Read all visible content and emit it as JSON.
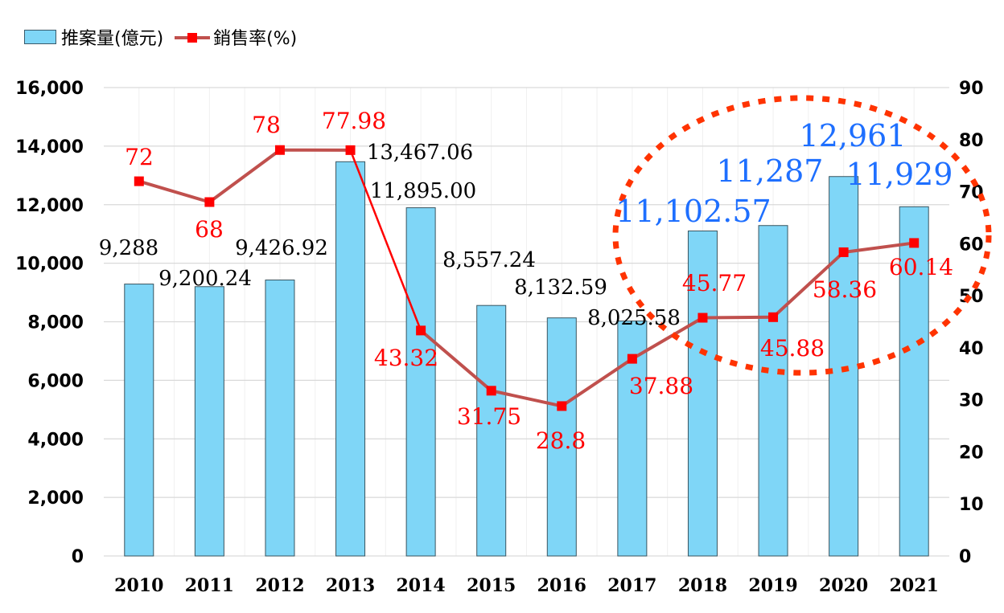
{
  "chart_data": {
    "type": "bar+line",
    "categories": [
      "2010",
      "2011",
      "2012",
      "2013",
      "2014",
      "2015",
      "2016",
      "2017",
      "2018",
      "2019",
      "2020",
      "2021"
    ],
    "series": [
      {
        "name": "推案量(億元)",
        "type": "bar",
        "axis": "left",
        "color": "#7FD6F7",
        "values": [
          9288,
          9200.24,
          9426.92,
          13467.06,
          11895.0,
          8557.24,
          8132.59,
          8025.58,
          11102.57,
          11287,
          12961,
          11929
        ],
        "labels": [
          "9,288",
          "9,200.24",
          "9,426.92",
          "13,467.06",
          "11,895.00",
          "8,557.24",
          "8,132.59",
          "8,025.58",
          "11,102.57",
          "11,287",
          "12,961",
          "11,929"
        ]
      },
      {
        "name": "銷售率(%)",
        "type": "line",
        "axis": "right",
        "color": "#C0504D",
        "marker_color": "#FF0000",
        "values": [
          72,
          68,
          78,
          77.98,
          43.32,
          31.75,
          28.8,
          37.88,
          45.77,
          45.88,
          58.36,
          60.14
        ],
        "labels": [
          "72",
          "68",
          "78",
          "77.98",
          "43.32",
          "31.75",
          "28.8",
          "37.88",
          "45.77",
          "45.88",
          "58.36",
          "60.14"
        ]
      }
    ],
    "left_axis": {
      "ylim": [
        0,
        16000
      ],
      "ticks": [
        "0",
        "2,000",
        "4,000",
        "6,000",
        "8,000",
        "10,000",
        "12,000",
        "14,000",
        "16,000"
      ]
    },
    "right_axis": {
      "ylim": [
        0,
        90
      ],
      "ticks": [
        "0",
        "10",
        "20",
        "30",
        "40",
        "50",
        "60",
        "70",
        "80",
        "90"
      ]
    },
    "grid": true,
    "legend": "top-left",
    "highlight_color": "#FF3300",
    "highlight_label_color": "#1E6FFF"
  }
}
